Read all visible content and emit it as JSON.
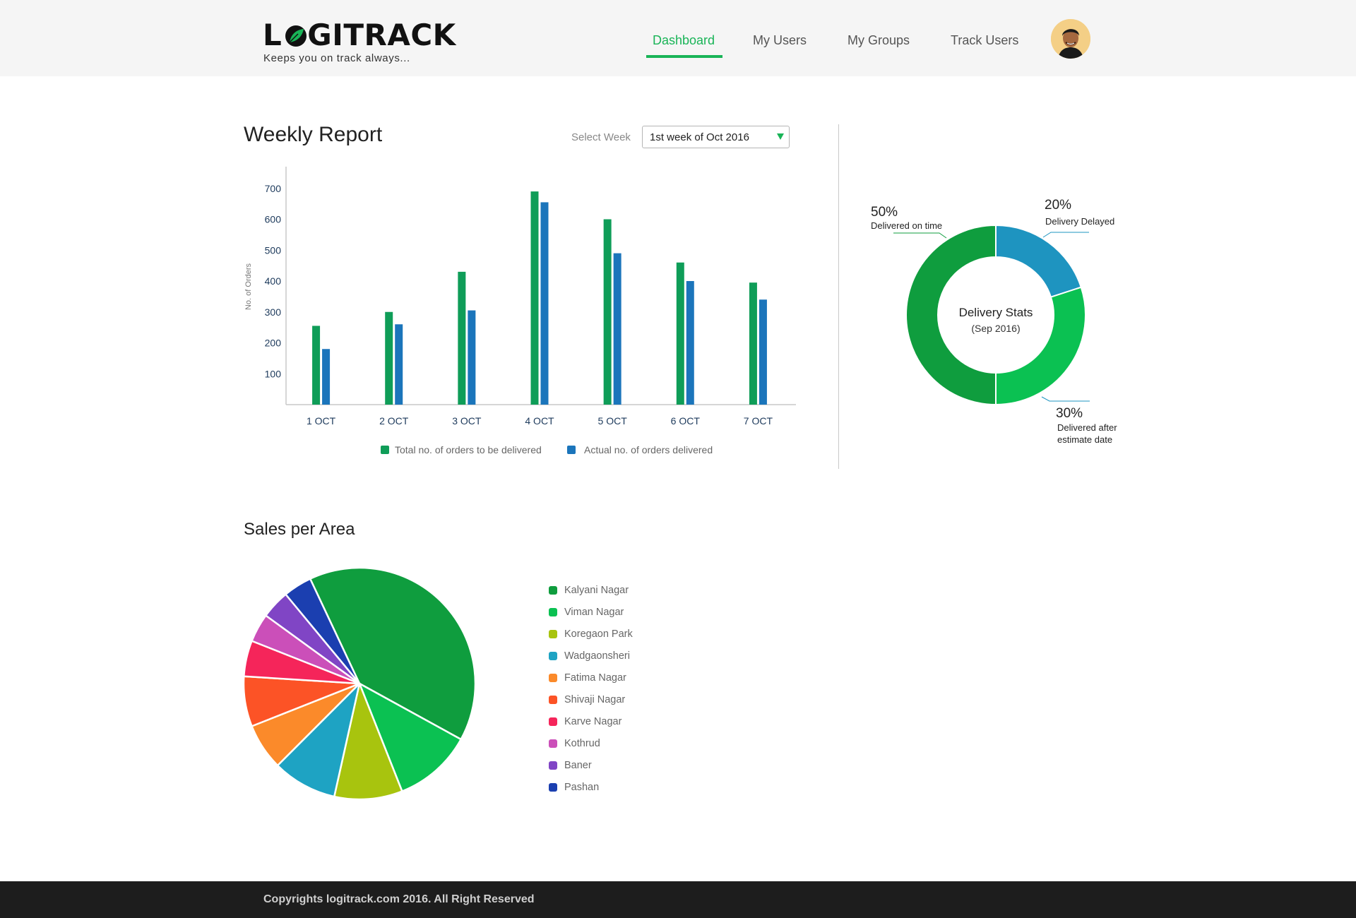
{
  "brand": {
    "logo_text_left": "L",
    "logo_text_right": "GITRACK",
    "tagline": "Keeps you on track always...",
    "accent_color": "#19b457"
  },
  "nav": {
    "items": [
      {
        "label": "Dashboard",
        "active": true
      },
      {
        "label": "My Users",
        "active": false
      },
      {
        "label": "My Groups",
        "active": false
      },
      {
        "label": "Track Users",
        "active": false
      }
    ],
    "avatar_icon": "user-avatar-icon"
  },
  "weekly": {
    "title": "Weekly Report",
    "select_label": "Select Week",
    "select_value": "1st week of Oct 2016"
  },
  "chart_data": [
    {
      "type": "bar",
      "categories": [
        "1 OCT",
        "2 OCT",
        "3 OCT",
        "4 OCT",
        "5 OCT",
        "6 OCT",
        "7 OCT"
      ],
      "series": [
        {
          "name": "Total no. of orders to be delivered",
          "color": "#0f9d58",
          "values": [
            255,
            300,
            430,
            690,
            600,
            460,
            395
          ]
        },
        {
          "name": "Actual no. of orders delivered",
          "color": "#1b75bb",
          "values": [
            180,
            260,
            305,
            655,
            490,
            400,
            340
          ]
        }
      ],
      "ylabel": "No. of Orders",
      "yticks": [
        100,
        200,
        300,
        400,
        500,
        600,
        700
      ],
      "ylim": [
        0,
        760
      ],
      "legend": "bottom"
    },
    {
      "type": "pie",
      "title": "Delivery Stats",
      "subtitle": "(Sep 2016)",
      "slices": [
        {
          "pct_text": "20%",
          "label": "Delivery Delayed",
          "value": 20,
          "color": "#1e94c0"
        },
        {
          "pct_text": "30%",
          "label": "Delivered after estimate date",
          "value": 30,
          "color": "#0bc152"
        },
        {
          "pct_text": "50%",
          "label": "Delivered on time",
          "value": 50,
          "color": "#0f9d3e"
        }
      ]
    },
    {
      "type": "pie",
      "title": "Sales per Area",
      "slices": [
        {
          "label": "Kalyani Nagar",
          "value": 40,
          "color": "#0f9d3e"
        },
        {
          "label": "Viman Nagar",
          "value": 11,
          "color": "#0bc152"
        },
        {
          "label": "Koregaon Park",
          "value": 9.5,
          "color": "#a8c40e"
        },
        {
          "label": "Wadgaonsheri",
          "value": 9,
          "color": "#1ea3c3"
        },
        {
          "label": "Fatima Nagar",
          "value": 6.5,
          "color": "#fb8a2a"
        },
        {
          "label": "Shivaji Nagar",
          "value": 7,
          "color": "#fc5326"
        },
        {
          "label": "Karve Nagar",
          "value": 5,
          "color": "#f5255a"
        },
        {
          "label": "Kothrud",
          "value": 4,
          "color": "#cb4fb9"
        },
        {
          "label": "Baner",
          "value": 4,
          "color": "#8045c5"
        },
        {
          "label": "Pashan",
          "value": 4,
          "color": "#1b3fb0"
        }
      ]
    }
  ],
  "footer": {
    "text": "Copyrights logitrack.com 2016. All Right Reserved"
  }
}
